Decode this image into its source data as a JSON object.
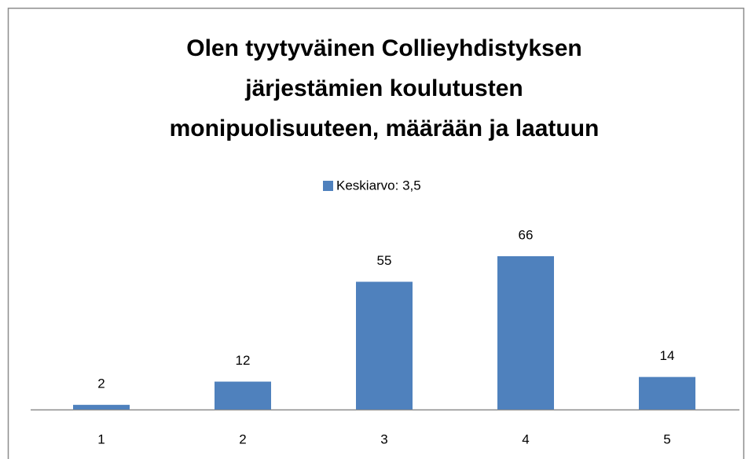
{
  "chart_data": {
    "type": "bar",
    "title": [
      "Olen tyytyväinen Collieyhdistyksen",
      "järjestämien koulutusten",
      "monipuolisuuteen,  määrään ja laatuun"
    ],
    "categories": [
      "1",
      "2",
      "3",
      "4",
      "5"
    ],
    "series": [
      {
        "name": "Keskiarvo: 3,5",
        "color": "#4f81bd",
        "values": [
          2,
          12,
          55,
          66,
          14
        ]
      }
    ],
    "legend": "top"
  }
}
